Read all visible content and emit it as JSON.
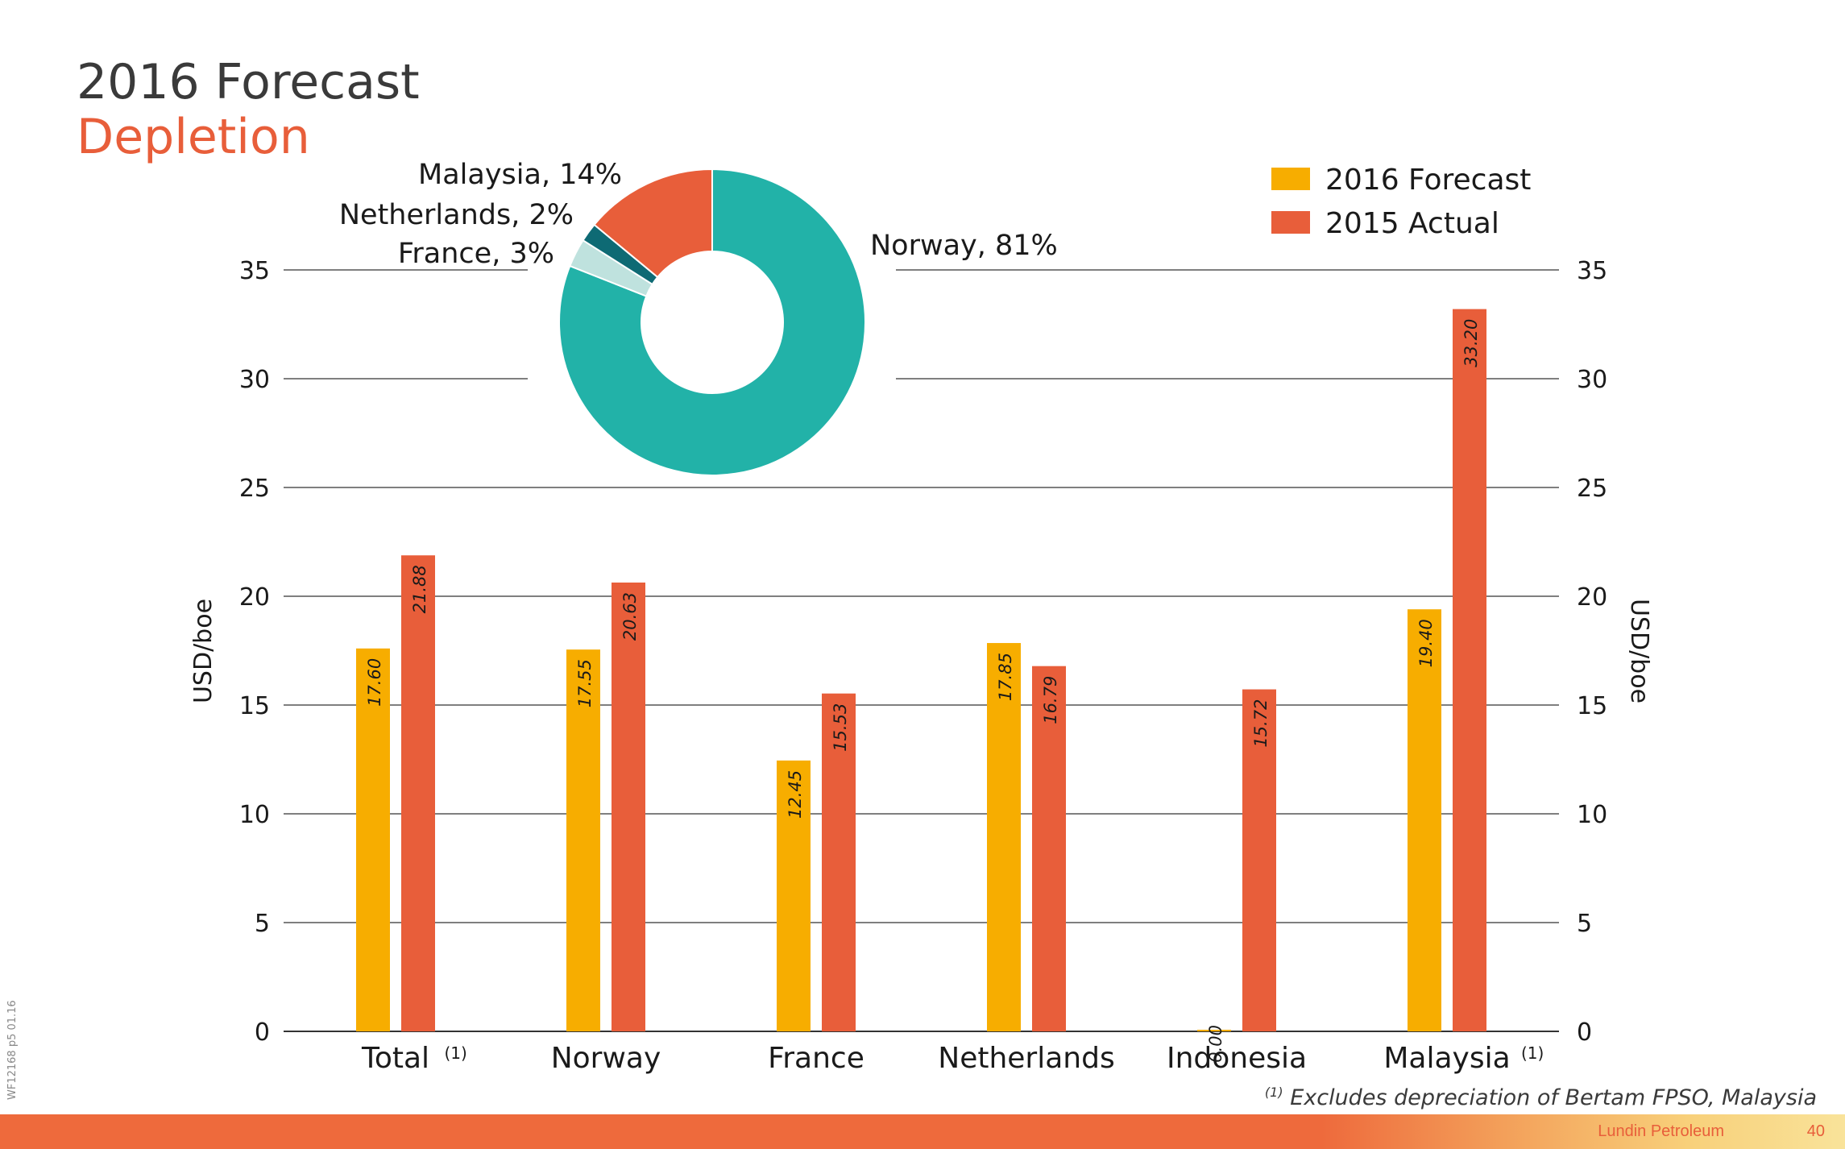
{
  "title": "2016 Forecast",
  "subtitle": "Depletion",
  "colors": {
    "forecast": "#f7ad00",
    "actual": "#e85e3a",
    "title": "#3a3a3a",
    "accent": "#e85e3a",
    "norway": "#22b2a8",
    "france": "#bfe2de",
    "netherlands": "#0e6a74",
    "malaysia": "#e85e3a",
    "grid": "#555555"
  },
  "chart_data": [
    {
      "type": "bar",
      "categories": [
        "Total",
        "Norway",
        "France",
        "Netherlands",
        "Indonesia",
        "Malaysia"
      ],
      "category_footnotes": [
        "(1)",
        "",
        "",
        "",
        "",
        "(1)"
      ],
      "series": [
        {
          "name": "2016 Forecast",
          "values": [
            17.6,
            17.55,
            12.45,
            17.85,
            0.0,
            19.4
          ]
        },
        {
          "name": "2015 Actual",
          "values": [
            21.88,
            20.63,
            15.53,
            16.79,
            15.72,
            33.2
          ]
        }
      ],
      "value_labels": [
        [
          "17.60",
          "17.55",
          "12.45",
          "17.85",
          "0.00",
          "19.40"
        ],
        [
          "21.88",
          "20.63",
          "15.53",
          "16.79",
          "15.72",
          "33.20"
        ]
      ],
      "ylabel": "USD/boe",
      "ylabel_right": "USD/boe",
      "ylim": [
        0,
        35
      ],
      "yticks": [
        "0",
        "5",
        "10",
        "15",
        "20",
        "25",
        "30",
        "35"
      ],
      "grid": true,
      "legend": "top-right"
    },
    {
      "type": "pie",
      "donut": true,
      "slices": [
        {
          "label": "Norway, 81%",
          "value": 81
        },
        {
          "label": "France, 3%",
          "value": 3
        },
        {
          "label": "Netherlands, 2%",
          "value": 2
        },
        {
          "label": "Malaysia, 14%",
          "value": 14
        }
      ]
    }
  ],
  "footnote": {
    "mark": "(1)",
    "text": "Excludes depreciation of Bertam FPSO, Malaysia"
  },
  "footer": {
    "company": "Lundin Petroleum",
    "page": "40",
    "side_code": "WF12168 p5  01.16"
  }
}
